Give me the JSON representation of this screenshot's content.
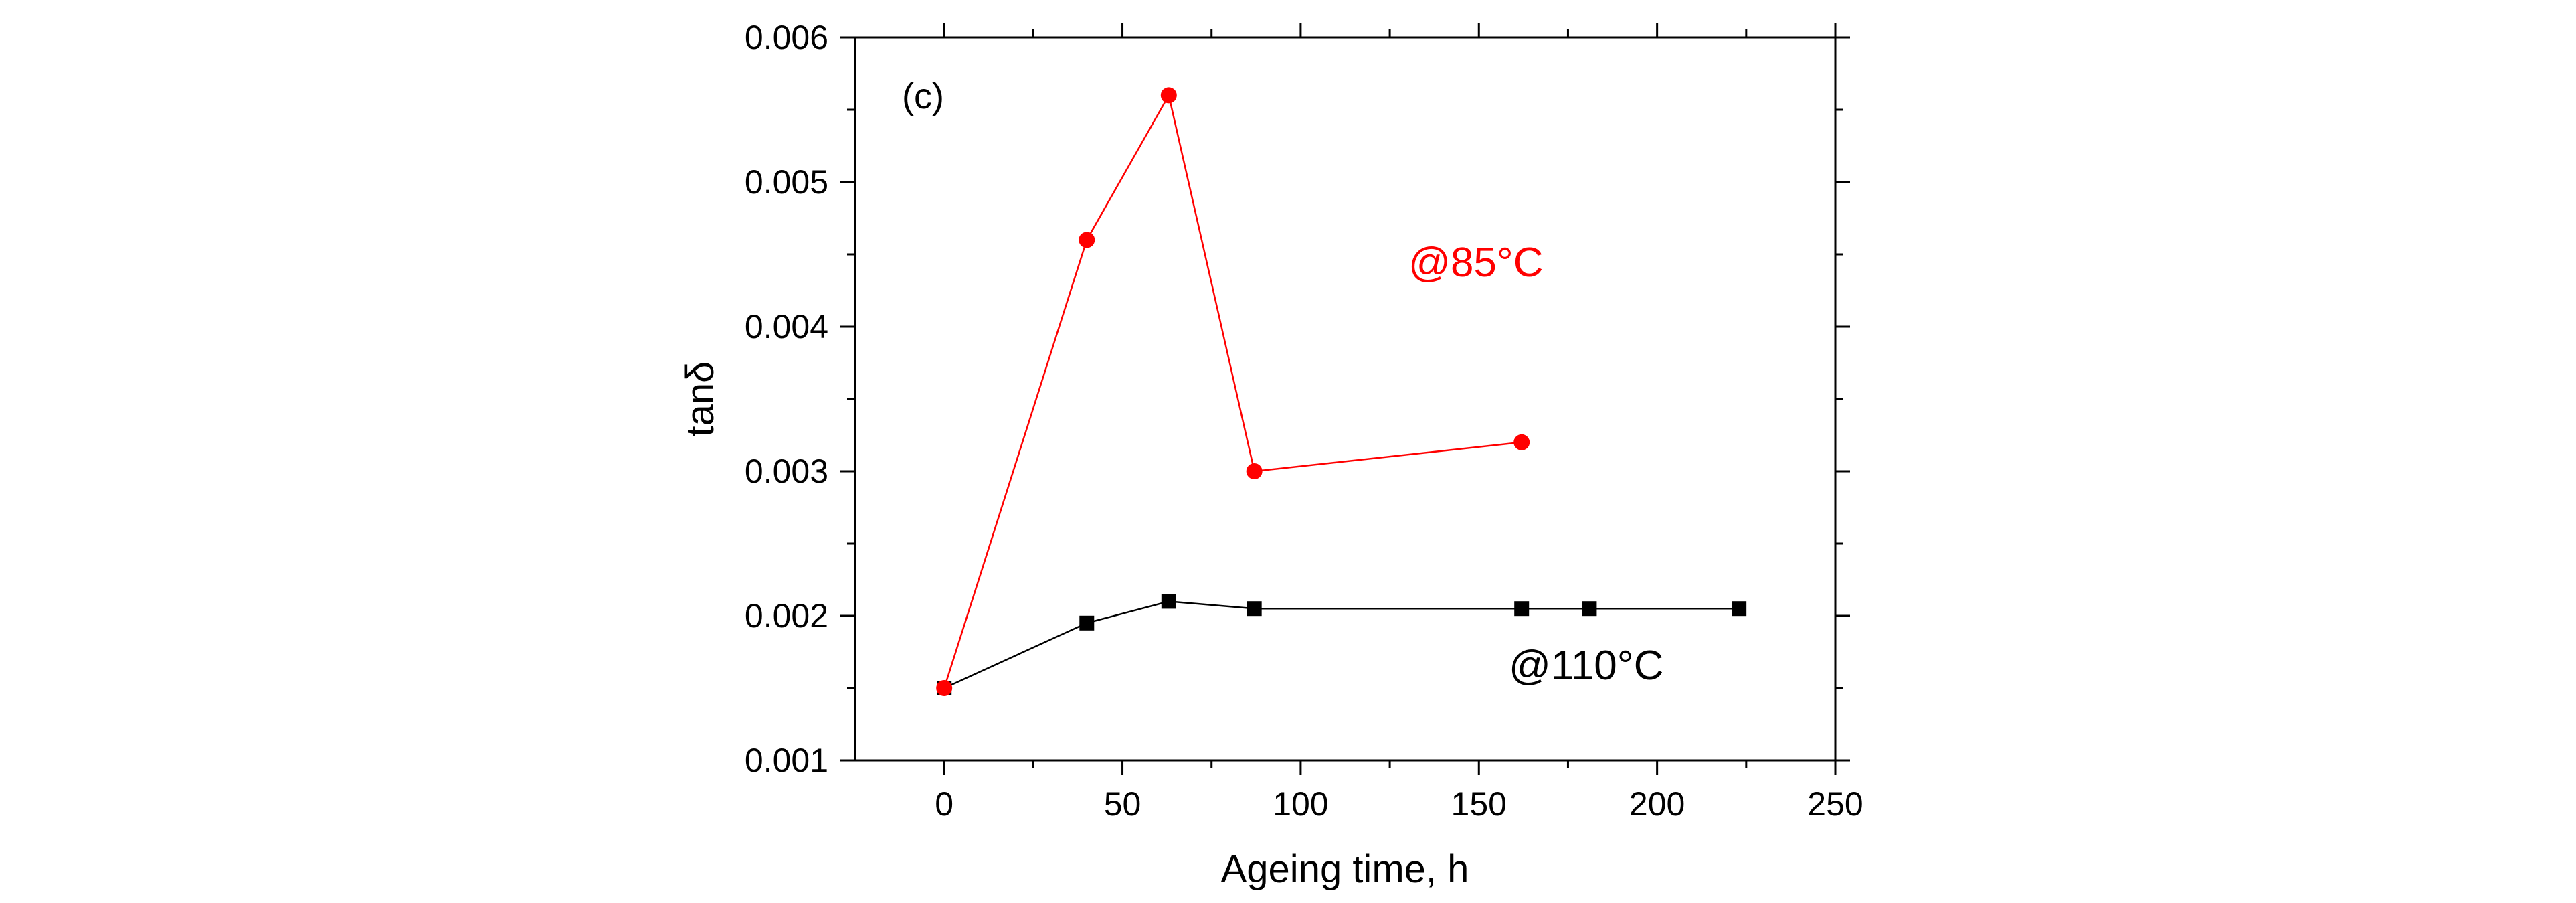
{
  "chart_data": {
    "type": "line",
    "panel_label": "(c)",
    "xlabel": "Ageing time, h",
    "ylabel": "tanδ",
    "xlim": [
      -25,
      250
    ],
    "ylim": [
      0.001,
      0.006
    ],
    "x_ticks": [
      0,
      50,
      100,
      150,
      200,
      250
    ],
    "y_ticks": [
      0.001,
      0.002,
      0.003,
      0.004,
      0.005,
      0.006
    ],
    "x_tick_labels": [
      "0",
      "50",
      "100",
      "150",
      "200",
      "250"
    ],
    "y_tick_labels": [
      "0.001",
      "0.002",
      "0.003",
      "0.004",
      "0.005",
      "0.006"
    ],
    "grid": false,
    "series": [
      {
        "marker": "square",
        "color": "#000000",
        "x": [
          0,
          40,
          63,
          87,
          162,
          181,
          223
        ],
        "y": [
          0.0015,
          0.00195,
          0.0021,
          0.00205,
          0.00205,
          0.00205,
          0.00205
        ]
      },
      {
        "marker": "circle",
        "color": "#ff0000",
        "x": [
          0,
          40,
          63,
          87,
          162
        ],
        "y": [
          0.0015,
          0.0046,
          0.0056,
          0.003,
          0.0032
        ]
      }
    ],
    "annotations": [
      {
        "text": "@85°C",
        "color": "#ff0000",
        "x": 170,
        "y": 0.00435
      },
      {
        "text": "@110°C",
        "color": "#000000",
        "x": 180,
        "y": 0.00165
      }
    ]
  }
}
